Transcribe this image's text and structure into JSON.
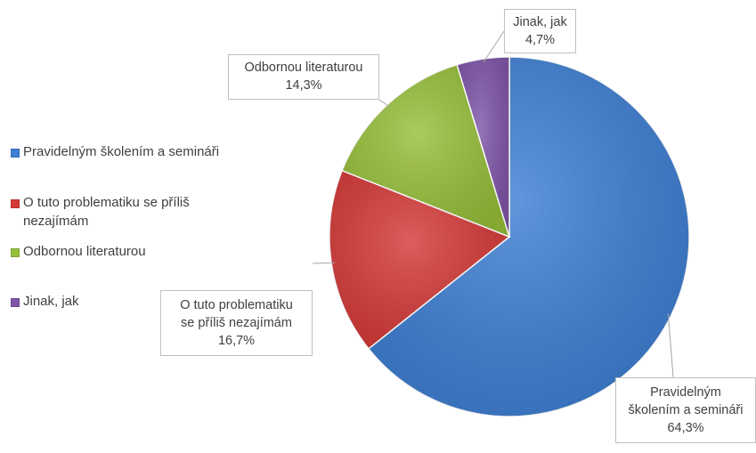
{
  "chart_data": {
    "type": "pie",
    "title": "",
    "slices": [
      {
        "name": "Pravidelným školením a semináři",
        "value": 64.3,
        "label": "64,3%",
        "color": "#3e7fd3"
      },
      {
        "name": "O tuto problematiku se příliš nezajímám",
        "value": 16.7,
        "label": "16,7%",
        "color": "#d43a38"
      },
      {
        "name": "Odbornou literaturou",
        "value": 14.3,
        "label": "14,3%",
        "color": "#97bf3a"
      },
      {
        "name": "Jinak, jak",
        "value": 4.7,
        "label": "4,7%",
        "color": "#7e55a8"
      }
    ],
    "legend_placement": "left",
    "data_labels": [
      {
        "lines": [
          "Pravidelným",
          "školením a semináři",
          "64,3%"
        ]
      },
      {
        "lines": [
          "O tuto problematiku",
          "se příliš nezajímám",
          "16,7%"
        ]
      },
      {
        "lines": [
          "Odbornou literaturou",
          "14,3%"
        ]
      },
      {
        "lines": [
          "Jinak, jak",
          "4,7%"
        ]
      }
    ]
  }
}
